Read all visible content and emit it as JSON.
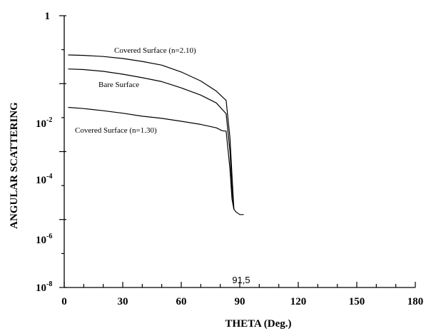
{
  "chart_data": {
    "type": "line",
    "title": "",
    "xlabel": "THETA (Deg.)",
    "ylabel": "ANGULAR SCATTERING",
    "xlim": [
      0,
      180
    ],
    "ylim": [
      1e-08,
      1
    ],
    "yscale": "log",
    "grid": false,
    "legend": "none",
    "x_tick_labels": [
      "0",
      "30",
      "60",
      "90",
      "120",
      "150",
      "180"
    ],
    "y_tick_labels": [
      {
        "base": "1",
        "exp": ""
      },
      {
        "base": "10",
        "exp": "-2"
      },
      {
        "base": "10",
        "exp": "-4"
      },
      {
        "base": "10",
        "exp": "-6"
      },
      {
        "base": "10",
        "exp": "-8"
      }
    ],
    "annotation": "91,5",
    "series": [
      {
        "name": "Covered Surface (n=2.10)",
        "x": [
          2,
          10,
          20,
          30,
          40,
          50,
          60,
          70,
          78,
          83,
          85,
          86,
          87,
          88,
          90,
          92
        ],
        "y": [
          0.07,
          0.068,
          0.063,
          0.055,
          0.045,
          0.035,
          0.022,
          0.012,
          0.006,
          0.0032,
          0.00025,
          2e-05,
          2e-06,
          1.7e-06,
          1.4e-06,
          1.4e-06
        ]
      },
      {
        "name": "Bare Surface",
        "x": [
          2,
          10,
          20,
          30,
          40,
          50,
          60,
          70,
          78,
          83,
          85,
          86,
          87
        ],
        "y": [
          0.027,
          0.026,
          0.023,
          0.019,
          0.015,
          0.0115,
          0.0075,
          0.0046,
          0.0027,
          0.0013,
          0.0001,
          8e-06,
          2e-06
        ]
      },
      {
        "name": "Covered Surface (n=1.30)",
        "x": [
          2,
          10,
          20,
          30,
          40,
          50,
          60,
          70,
          78,
          81,
          83,
          85,
          86,
          87
        ],
        "y": [
          0.002,
          0.00185,
          0.0016,
          0.00135,
          0.0011,
          0.00095,
          0.00078,
          0.00063,
          0.0005,
          0.00041,
          0.0004,
          3e-05,
          4e-06,
          2e-06
        ]
      }
    ]
  }
}
